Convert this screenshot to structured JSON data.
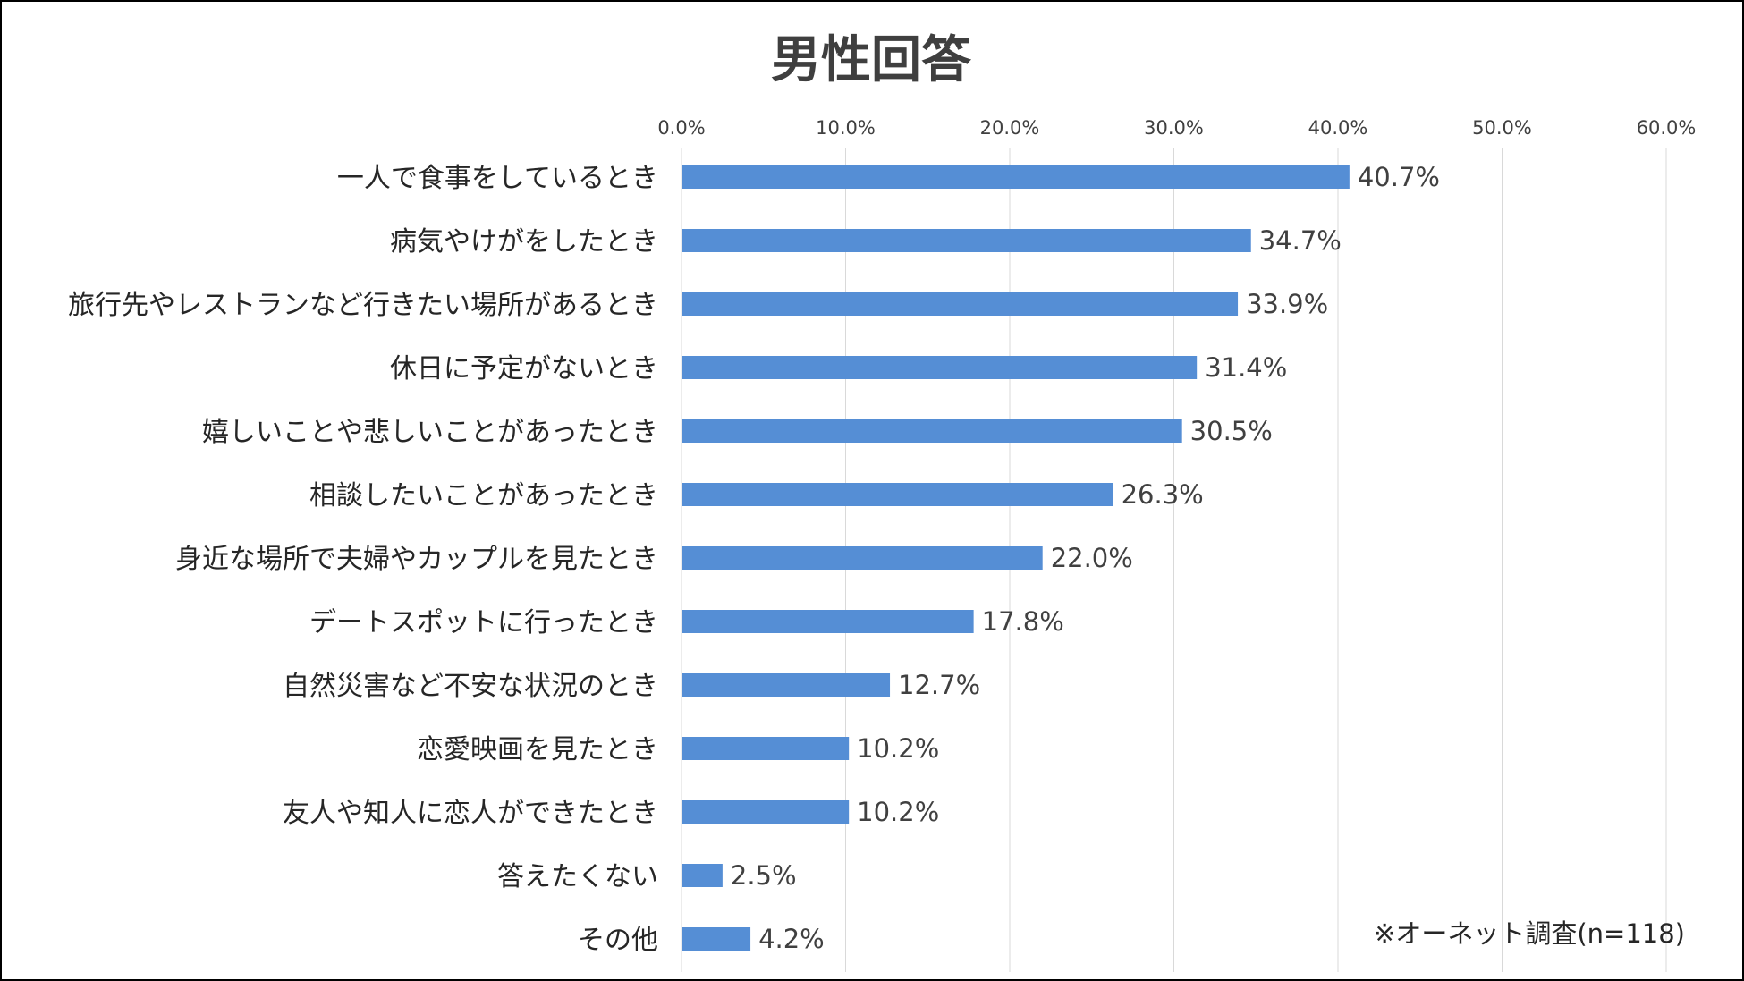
{
  "chart_data": {
    "type": "bar",
    "orientation": "horizontal",
    "title": "男性回答",
    "categories": [
      "一人で食事をしているとき",
      "病気やけがをしたとき",
      "旅行先やレストランなど行きたい場所があるとき",
      "休日に予定がないとき",
      "嬉しいことや悲しいことがあったとき",
      "相談したいことがあったとき",
      "身近な場所で夫婦やカップルを見たとき",
      "デートスポットに行ったとき",
      "自然災害など不安な状況のとき",
      "恋愛映画を見たとき",
      "友人や知人に恋人ができたとき",
      "答えたくない",
      "その他"
    ],
    "values": [
      40.7,
      34.7,
      33.9,
      31.4,
      30.5,
      26.3,
      22.0,
      17.8,
      12.7,
      10.2,
      10.2,
      2.5,
      4.2
    ],
    "value_labels": [
      "40.7%",
      "34.7%",
      "33.9%",
      "31.4%",
      "30.5%",
      "26.3%",
      "22.0%",
      "17.8%",
      "12.7%",
      "10.2%",
      "10.2%",
      "2.5%",
      "4.2%"
    ],
    "x_ticks": [
      0,
      10,
      20,
      30,
      40,
      50,
      60
    ],
    "x_tick_labels": [
      "0.0%",
      "10.0%",
      "20.0%",
      "30.0%",
      "40.0%",
      "50.0%",
      "60.0%"
    ],
    "xlim": [
      0,
      60
    ],
    "x_axis_position": "top",
    "grid": true,
    "legend": "none",
    "xlabel": "",
    "ylabel": "",
    "bar_color": "#558ed5",
    "note": "※オーネット調査(n=118)"
  }
}
